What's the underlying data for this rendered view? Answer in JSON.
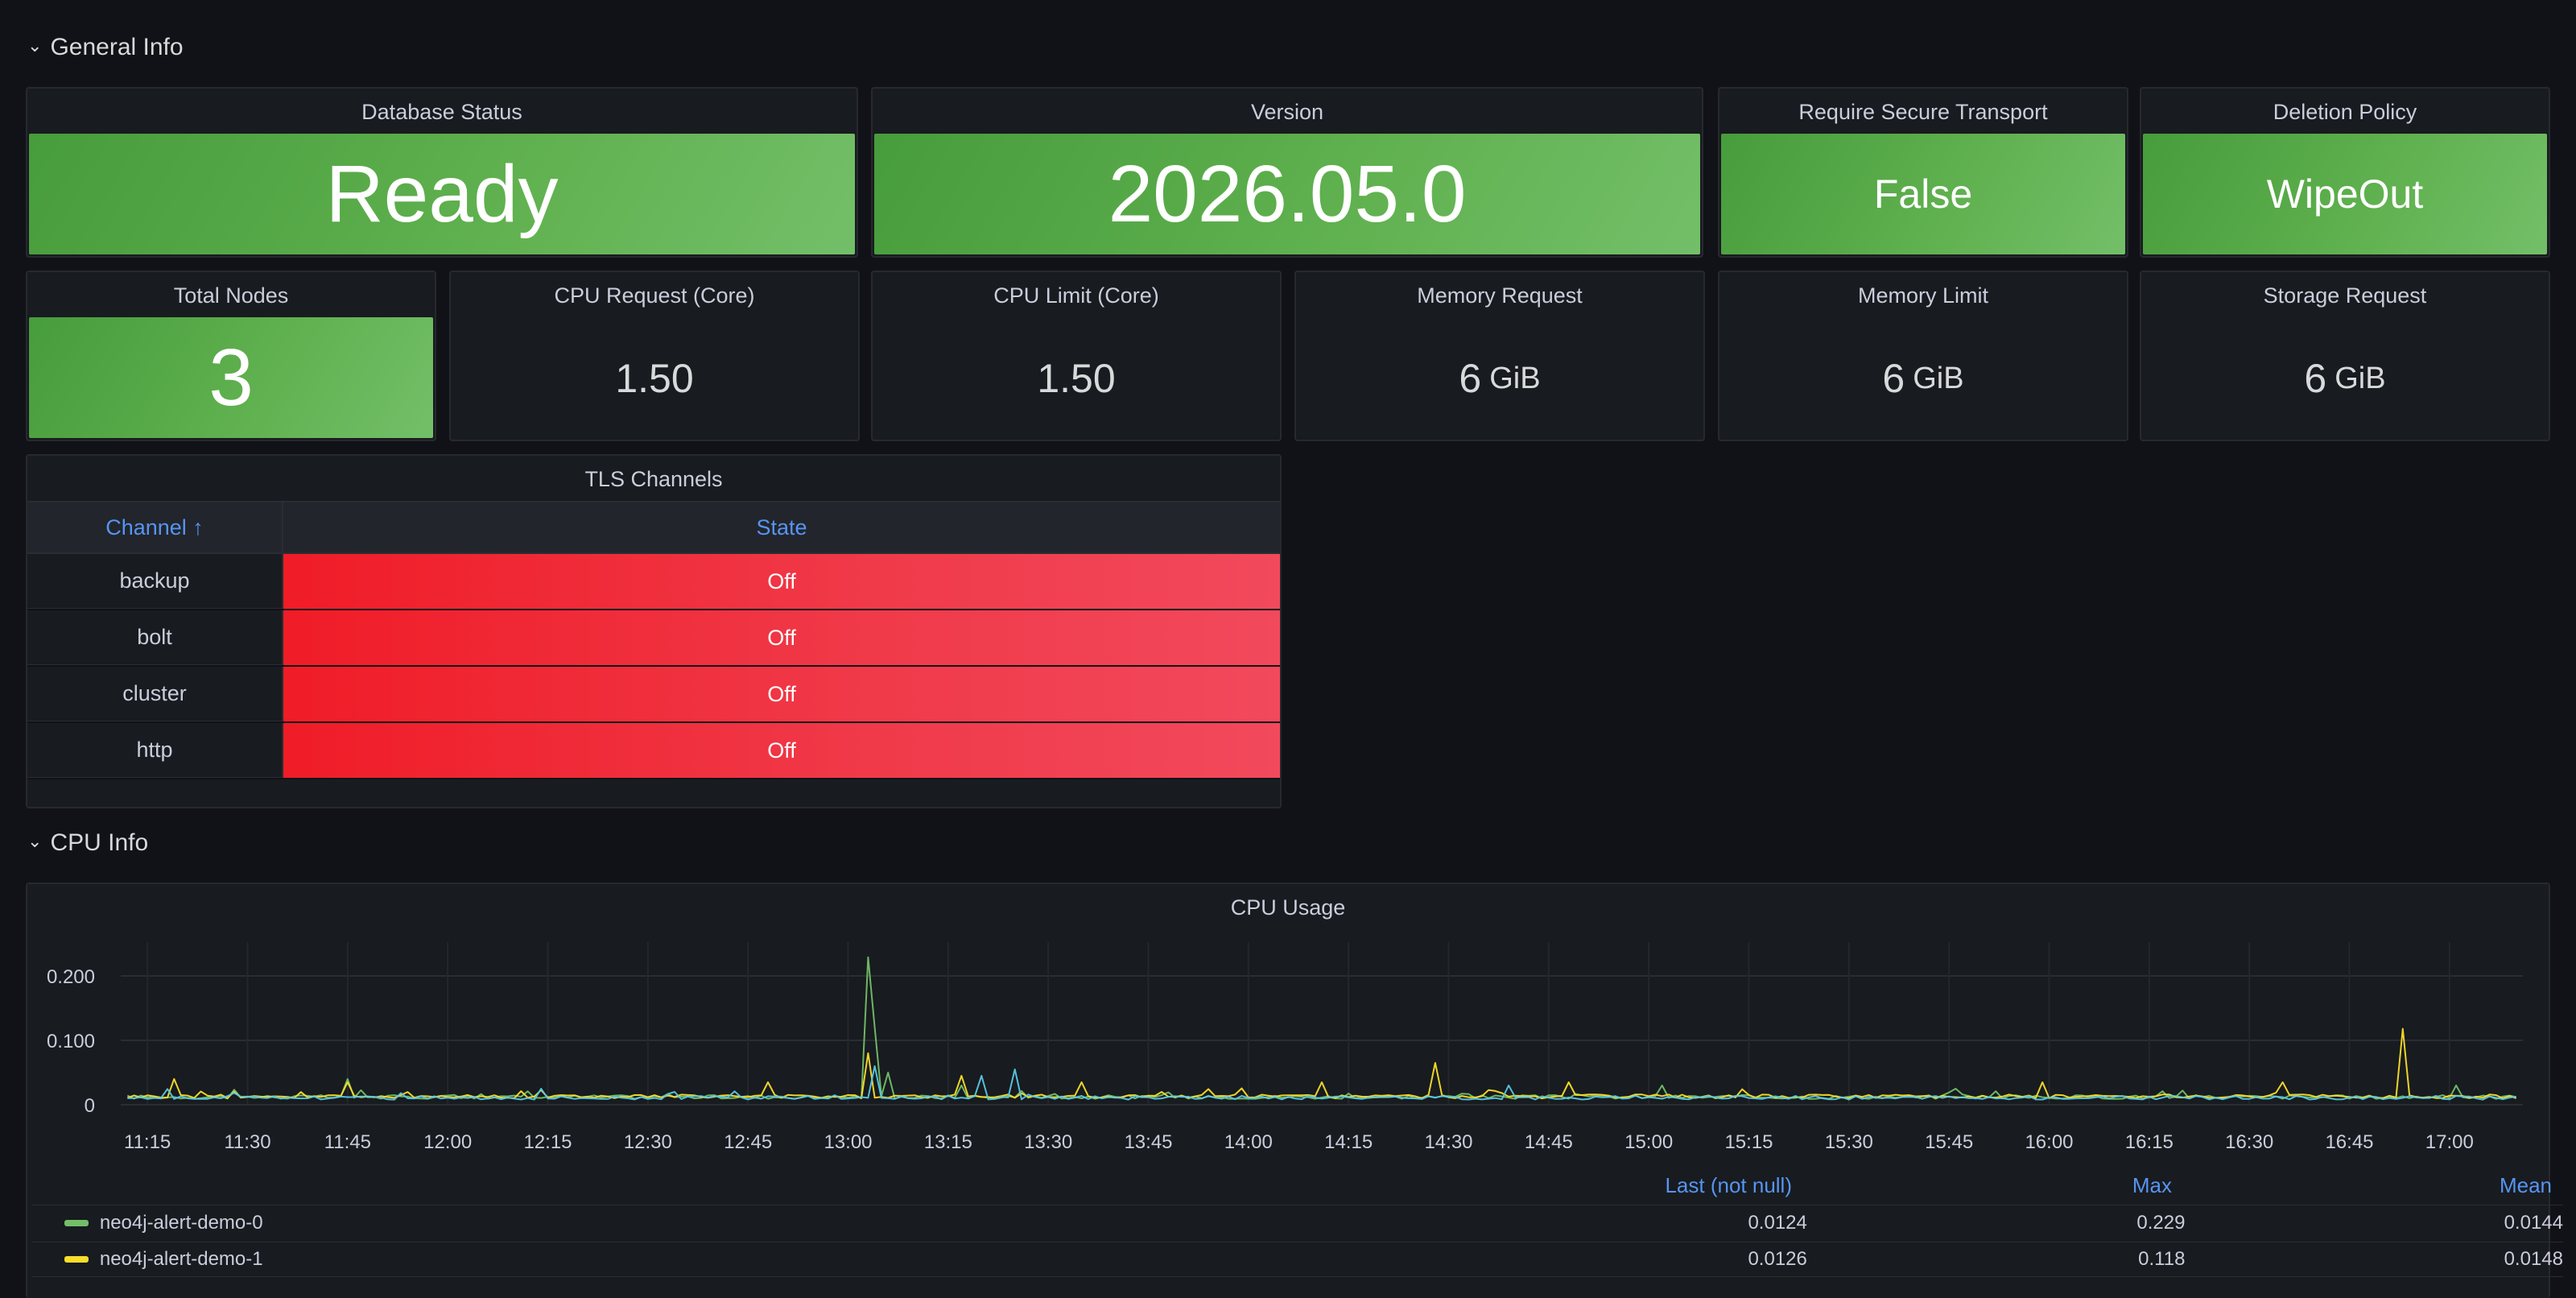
{
  "rows": {
    "general": "General Info",
    "cpu": "CPU Info"
  },
  "stats": {
    "database_status": {
      "title": "Database Status",
      "value": "Ready"
    },
    "version": {
      "title": "Version",
      "value": "2026.05.0"
    },
    "secure_transport": {
      "title": "Require Secure Transport",
      "value": "False"
    },
    "deletion_policy": {
      "title": "Deletion Policy",
      "value": "WipeOut"
    },
    "total_nodes": {
      "title": "Total Nodes",
      "value": "3"
    },
    "cpu_request": {
      "title": "CPU Request (Core)",
      "value": "1.50"
    },
    "cpu_limit": {
      "title": "CPU Limit (Core)",
      "value": "1.50"
    },
    "memory_request": {
      "title": "Memory Request",
      "value": "6",
      "unit": "GiB"
    },
    "memory_limit": {
      "title": "Memory Limit",
      "value": "6",
      "unit": "GiB"
    },
    "storage_request": {
      "title": "Storage Request",
      "value": "6",
      "unit": "GiB"
    }
  },
  "tls": {
    "title": "TLS Channels",
    "col_channel": "Channel ↑",
    "col_state": "State",
    "rows": [
      {
        "channel": "backup",
        "state": "Off"
      },
      {
        "channel": "bolt",
        "state": "Off"
      },
      {
        "channel": "cluster",
        "state": "Off"
      },
      {
        "channel": "http",
        "state": "Off"
      }
    ]
  },
  "colors": {
    "green_stat": "#73bf69",
    "red_state": "#f2495c",
    "series0": "#73bf69",
    "series1": "#fade2a",
    "series_extra": "#5ac8e6",
    "accent_link": "#5794f2"
  },
  "chart_data": {
    "type": "line",
    "title": "CPU Usage",
    "ylim": [
      0,
      0.24
    ],
    "y_ticks": [
      "0",
      "0.100",
      "0.200"
    ],
    "x_ticks": [
      "11:15",
      "11:30",
      "11:45",
      "12:00",
      "12:15",
      "12:30",
      "12:45",
      "13:00",
      "13:15",
      "13:30",
      "13:45",
      "14:00",
      "14:15",
      "14:30",
      "14:45",
      "15:00",
      "15:15",
      "15:30",
      "15:45",
      "16:00",
      "16:15",
      "16:30",
      "16:45",
      "17:00"
    ],
    "x_range": [
      "11:11",
      "17:11"
    ],
    "grid": true,
    "legend_placement": "bottom",
    "series": [
      {
        "name": "neo4j-alert-demo-0",
        "color": "#73bf69",
        "baseline": 0.012,
        "spikes": [
          [
            "11:45",
            0.04
          ],
          [
            "13:03",
            0.229
          ],
          [
            "13:04",
            0.12
          ],
          [
            "13:06",
            0.05
          ],
          [
            "13:17",
            0.03
          ],
          [
            "15:02",
            0.03
          ],
          [
            "15:46",
            0.025
          ],
          [
            "16:20",
            0.022
          ],
          [
            "17:01",
            0.03
          ]
        ],
        "last": "0.0124",
        "max": "0.229",
        "mean": "0.0144"
      },
      {
        "name": "neo4j-alert-demo-1",
        "color": "#fade2a",
        "baseline": 0.013,
        "spikes": [
          [
            "11:19",
            0.04
          ],
          [
            "11:45",
            0.035
          ],
          [
            "12:48",
            0.035
          ],
          [
            "13:03",
            0.08
          ],
          [
            "13:17",
            0.045
          ],
          [
            "13:35",
            0.035
          ],
          [
            "14:11",
            0.035
          ],
          [
            "14:28",
            0.065
          ],
          [
            "14:48",
            0.035
          ],
          [
            "15:59",
            0.035
          ],
          [
            "16:35",
            0.035
          ],
          [
            "16:53",
            0.118
          ]
        ],
        "last": "0.0126",
        "max": "0.118",
        "mean": "0.0148"
      },
      {
        "color": "#5ac8e6",
        "baseline": 0.011,
        "spikes": [
          [
            "12:14",
            0.025
          ],
          [
            "13:04",
            0.06
          ],
          [
            "13:20",
            0.045
          ],
          [
            "13:25",
            0.055
          ],
          [
            "14:39",
            0.03
          ]
        ]
      }
    ],
    "legend_headers": {
      "last": "Last (not null)",
      "max": "Max",
      "mean": "Mean"
    }
  }
}
